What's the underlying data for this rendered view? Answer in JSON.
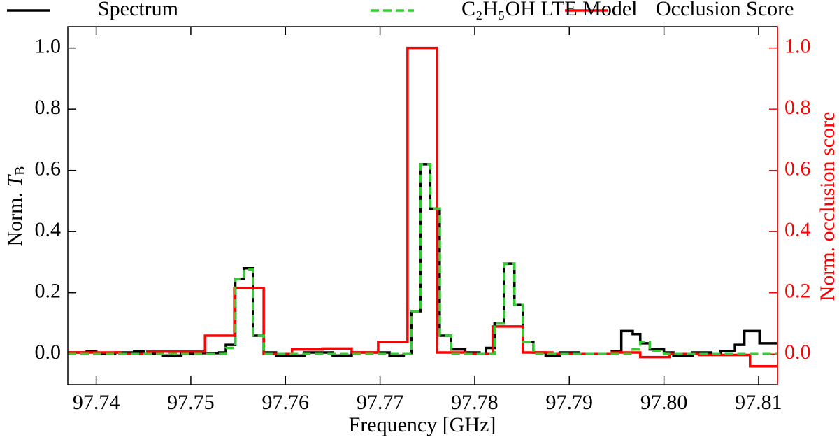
{
  "chart_data": {
    "type": "step",
    "xlabel": "Frequency [GHz]",
    "ylabel": [
      "Norm. ",
      "T",
      "B"
    ],
    "y2label": "Norm. occlusion score",
    "xlim": [
      97.737,
      97.812
    ],
    "xticks": [
      97.74,
      97.75,
      97.76,
      97.77,
      97.78,
      97.79,
      {
        "value": 97.8,
        "label": "97.80"
      },
      97.81
    ],
    "ylim": [
      -0.1,
      1.07
    ],
    "yticks": [
      {
        "value": 0,
        "label": "0.0"
      },
      0.2,
      0.4,
      0.6,
      0.8,
      {
        "value": 1,
        "label": "1.0"
      }
    ],
    "y2lim": [
      -0.1,
      1.07
    ],
    "y2ticks": [
      {
        "value": 0,
        "label": "0.0"
      },
      0.2,
      0.4,
      0.6,
      0.8,
      {
        "value": 1,
        "label": "1.0"
      }
    ],
    "legend": "top",
    "series": [
      {
        "name": "Spectrum",
        "color": "#000000",
        "linestyle": "solid",
        "axis": "y",
        "x": [
          97.737,
          97.739,
          97.74,
          97.742,
          97.744,
          97.745,
          97.747,
          97.749,
          97.751,
          97.753,
          97.7537,
          97.7547,
          97.7556,
          97.7566,
          97.7577,
          97.759,
          97.762,
          97.765,
          97.767,
          97.771,
          97.7725,
          97.7733,
          97.7743,
          97.7753,
          97.7763,
          97.7775,
          97.779,
          97.7805,
          97.7812,
          97.7821,
          97.7831,
          97.7842,
          97.7851,
          97.7862,
          97.7875,
          97.789,
          97.791,
          97.7945,
          97.7955,
          97.7967,
          97.7975,
          97.7985,
          97.8,
          97.801,
          97.803,
          97.805,
          97.806,
          97.8075,
          97.8085,
          97.8101
        ],
        "values": [
          0.005,
          0.008,
          0.0,
          0.005,
          0.008,
          0.0,
          -0.005,
          0.0,
          0.003,
          0.005,
          0.03,
          0.245,
          0.28,
          0.06,
          0.005,
          -0.005,
          0.005,
          -0.005,
          0.005,
          -0.005,
          0.0,
          0.14,
          0.62,
          0.475,
          0.06,
          0.015,
          0.005,
          0.0,
          0.02,
          0.1,
          0.295,
          0.16,
          0.04,
          0.005,
          -0.005,
          0.005,
          0.0,
          0.01,
          0.075,
          0.065,
          0.035,
          0.015,
          0.005,
          -0.005,
          0.005,
          0.0,
          0.01,
          0.03,
          0.075,
          0.035
        ]
      },
      {
        "name": "Occlusion Score",
        "color": "#ff0000",
        "linestyle": "solid",
        "axis": "y2",
        "x": [
          97.737,
          97.7426,
          97.7454,
          97.7515,
          97.7546,
          97.7577,
          97.7607,
          97.7639,
          97.767,
          97.7698,
          97.7729,
          97.776,
          97.779,
          97.7819,
          97.7851,
          97.7882,
          97.7945,
          97.7975,
          97.8006,
          97.8037,
          97.8091
        ],
        "values": [
          0.005,
          0.0,
          0.008,
          0.06,
          0.215,
          0.0,
          0.015,
          0.018,
          0.005,
          0.04,
          1.0,
          0.005,
          0.0,
          0.09,
          0.005,
          0.0,
          0.005,
          -0.01,
          0.0,
          -0.003,
          -0.04
        ]
      },
      {
        "name": "C₂H₅OH LTE Model",
        "color": "#33cc33",
        "linestyle": "dashed",
        "axis": "y",
        "x": [
          97.737,
          97.7537,
          97.7547,
          97.7556,
          97.7566,
          97.7577,
          97.7733,
          97.7743,
          97.7753,
          97.7763,
          97.7775,
          97.7821,
          97.7831,
          97.7842,
          97.7851,
          97.7862,
          97.7967,
          97.7975,
          97.7985,
          97.8
        ],
        "values": [
          0.0,
          0.02,
          0.245,
          0.275,
          0.06,
          0.0,
          0.14,
          0.62,
          0.475,
          0.06,
          0.0,
          0.1,
          0.295,
          0.16,
          0.04,
          0.0,
          0.015,
          0.04,
          0.01,
          0.0
        ]
      }
    ]
  }
}
